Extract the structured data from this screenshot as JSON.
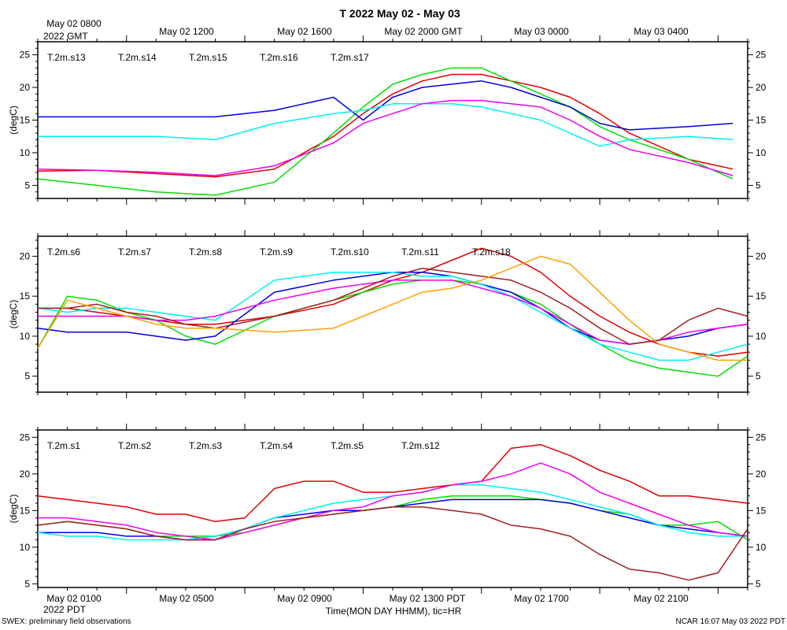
{
  "title": "T 2022 May 02 - May 03",
  "top_axis": {
    "labels": [
      "May 02 0800",
      "May 02 1200",
      "May 02 1600",
      "May 02 2000 GMT",
      "May 03 0000",
      "May 03 0400"
    ],
    "year_label": "2022 GMT"
  },
  "bottom_axis": {
    "labels": [
      "May 02 0100",
      "May 02 0500",
      "May 02 0900",
      "May 02 1300 PDT",
      "May 02 1700",
      "May 02 2100"
    ],
    "year_label": "2022 PDT",
    "xlabel": "Time(MON DAY HHMM), tic=HR"
  },
  "footer": {
    "left": "SWEX: preliminary field observations",
    "right": "NCAR 16:07 May 03 2022 PDT"
  },
  "colors": {
    "red": "#e00000",
    "green": "#00e000",
    "blue": "#0000e0",
    "cyan": "#00f0f0",
    "magenta": "#f000f0",
    "brown": "#a02020",
    "orange": "#ffa000"
  },
  "chart_data": [
    {
      "type": "line",
      "panel": "top",
      "ylabel": "(degC)",
      "xlim": [
        0,
        24
      ],
      "ylim": [
        3,
        27
      ],
      "yticks": [
        5,
        10,
        15,
        20,
        25
      ],
      "x": [
        0,
        2,
        4,
        6,
        8,
        10,
        11,
        12,
        13,
        14,
        15,
        16,
        17,
        18,
        19,
        20,
        22,
        23.5
      ],
      "series": [
        {
          "name": "T.2m.s13",
          "color": "red",
          "values": [
            7.2,
            7.3,
            6.8,
            6.3,
            7.5,
            12.5,
            16.0,
            19.0,
            21.0,
            22.0,
            22.0,
            21.0,
            20.0,
            18.5,
            16.0,
            13.0,
            9.0,
            7.5
          ]
        },
        {
          "name": "T.2m.s14",
          "color": "green",
          "values": [
            6.0,
            5.0,
            4.0,
            3.5,
            5.5,
            13.0,
            17.0,
            20.5,
            22.0,
            23.0,
            23.0,
            21.0,
            19.0,
            17.0,
            14.0,
            12.0,
            9.0,
            6.0
          ]
        },
        {
          "name": "T.2m.s15",
          "color": "blue",
          "values": [
            15.5,
            15.5,
            15.5,
            15.5,
            16.5,
            18.5,
            15.0,
            18.5,
            20.0,
            20.5,
            21.0,
            20.0,
            18.5,
            17.0,
            14.5,
            13.5,
            14.0,
            14.5
          ]
        },
        {
          "name": "T.2m.s16",
          "color": "cyan",
          "values": [
            12.5,
            12.5,
            12.5,
            12.0,
            14.5,
            16.0,
            16.5,
            17.5,
            17.5,
            17.5,
            17.0,
            16.0,
            15.0,
            13.0,
            11.0,
            12.0,
            12.5,
            12.0
          ]
        },
        {
          "name": "T.2m.s17",
          "color": "magenta",
          "values": [
            7.5,
            7.3,
            7.0,
            6.5,
            8.0,
            11.5,
            14.5,
            16.0,
            17.5,
            18.0,
            18.0,
            17.5,
            17.0,
            15.0,
            12.5,
            10.5,
            8.5,
            6.5
          ]
        }
      ]
    },
    {
      "type": "line",
      "panel": "middle",
      "ylabel": "(degC)",
      "xlim": [
        0,
        24
      ],
      "ylim": [
        3,
        22.5
      ],
      "yticks": [
        5,
        10,
        15,
        20
      ],
      "x": [
        0,
        1,
        2,
        3,
        4,
        5,
        6,
        8,
        10,
        11,
        12,
        13,
        14,
        15,
        16,
        17,
        18,
        19,
        20,
        21,
        22,
        23,
        24
      ],
      "series": [
        {
          "name": "T.2m.s6",
          "color": "red",
          "values": [
            13.5,
            13.5,
            13.0,
            12.5,
            12.0,
            11.5,
            11.5,
            12.5,
            14.0,
            15.5,
            17.0,
            18.0,
            19.5,
            21.0,
            20.0,
            18.0,
            15.0,
            12.5,
            10.5,
            9.0,
            8.0,
            7.5,
            8.0
          ]
        },
        {
          "name": "T.2m.s7",
          "color": "green",
          "values": [
            8.5,
            15.0,
            14.5,
            13.0,
            12.0,
            10.0,
            9.0,
            12.5,
            14.5,
            15.5,
            16.5,
            17.0,
            17.0,
            16.5,
            15.5,
            14.0,
            11.5,
            9.0,
            7.0,
            6.0,
            5.5,
            5.0,
            7.5
          ]
        },
        {
          "name": "T.2m.s8",
          "color": "blue",
          "values": [
            11.0,
            10.5,
            10.5,
            10.5,
            10.0,
            9.5,
            10.0,
            15.5,
            17.0,
            17.5,
            18.0,
            18.0,
            17.5,
            16.5,
            15.5,
            13.5,
            11.0,
            9.5,
            9.0,
            9.5,
            10.0,
            11.0,
            11.5
          ]
        },
        {
          "name": "T.2m.s9",
          "color": "cyan",
          "values": [
            13.5,
            13.0,
            13.5,
            13.5,
            13.0,
            12.5,
            12.0,
            17.0,
            18.0,
            18.0,
            18.0,
            17.5,
            17.5,
            16.5,
            15.0,
            13.0,
            11.0,
            9.0,
            8.0,
            7.0,
            7.0,
            8.0,
            9.0
          ]
        },
        {
          "name": "T.2m.s10",
          "color": "magenta",
          "values": [
            12.5,
            12.5,
            12.5,
            12.5,
            12.0,
            12.0,
            12.5,
            14.5,
            16.0,
            16.5,
            17.0,
            17.0,
            17.0,
            16.0,
            15.0,
            13.5,
            11.5,
            9.5,
            9.0,
            9.5,
            10.5,
            11.0,
            11.5
          ]
        },
        {
          "name": "T.2m.s11",
          "color": "brown",
          "values": [
            13.5,
            13.5,
            14.0,
            13.0,
            12.5,
            11.5,
            11.0,
            12.5,
            14.5,
            16.0,
            17.5,
            18.5,
            18.0,
            17.5,
            17.0,
            15.5,
            13.5,
            11.0,
            9.0,
            9.5,
            12.0,
            13.5,
            12.5
          ]
        },
        {
          "name": "T.2m.s18",
          "color": "orange",
          "values": [
            8.5,
            14.5,
            13.5,
            12.5,
            11.5,
            11.0,
            11.0,
            10.5,
            11.0,
            12.5,
            14.0,
            15.5,
            16.0,
            17.0,
            18.5,
            20.0,
            19.0,
            15.5,
            12.0,
            9.0,
            8.0,
            7.0,
            7.0
          ]
        }
      ]
    },
    {
      "type": "line",
      "panel": "bottom",
      "ylabel": "(degC)",
      "xlim": [
        0,
        24
      ],
      "ylim": [
        4.5,
        26
      ],
      "yticks": [
        5,
        10,
        15,
        20,
        25
      ],
      "x": [
        0,
        1,
        2,
        3,
        4,
        5,
        6,
        7,
        8,
        9,
        10,
        11,
        12,
        13,
        14,
        15,
        16,
        17,
        18,
        19,
        20,
        21,
        22,
        23,
        24
      ],
      "series": [
        {
          "name": "T.2m.s1",
          "color": "red",
          "values": [
            17.0,
            16.5,
            16.0,
            15.5,
            14.5,
            14.5,
            13.5,
            14.0,
            18.0,
            19.0,
            19.0,
            17.5,
            17.5,
            18.0,
            18.5,
            19.0,
            23.5,
            24.0,
            22.5,
            20.5,
            19.0,
            17.0,
            17.0,
            16.5,
            16.0
          ]
        },
        {
          "name": "T.2m.s2",
          "color": "green",
          "values": [
            13.0,
            13.5,
            13.0,
            12.5,
            11.5,
            11.5,
            11.5,
            12.0,
            13.0,
            14.0,
            14.5,
            15.0,
            15.5,
            16.5,
            17.0,
            17.0,
            17.0,
            16.5,
            16.0,
            15.0,
            14.5,
            13.0,
            13.0,
            13.5,
            11.0
          ]
        },
        {
          "name": "T.2m.s3",
          "color": "blue",
          "values": [
            12.0,
            12.0,
            12.0,
            11.5,
            11.5,
            11.0,
            11.0,
            12.5,
            14.0,
            14.5,
            15.0,
            15.0,
            15.5,
            16.0,
            16.5,
            16.5,
            16.5,
            16.5,
            16.0,
            15.0,
            14.0,
            13.0,
            12.5,
            12.0,
            11.5
          ]
        },
        {
          "name": "T.2m.s4",
          "color": "cyan",
          "values": [
            12.0,
            11.5,
            11.5,
            11.0,
            11.0,
            11.0,
            11.5,
            12.5,
            14.0,
            15.0,
            16.0,
            16.5,
            17.0,
            17.5,
            18.5,
            18.5,
            18.0,
            17.5,
            16.5,
            15.5,
            14.5,
            13.0,
            12.0,
            11.5,
            11.5
          ]
        },
        {
          "name": "T.2m.s5",
          "color": "magenta",
          "values": [
            14.0,
            14.0,
            13.5,
            13.0,
            12.0,
            11.5,
            11.0,
            12.0,
            13.0,
            14.0,
            15.0,
            15.5,
            17.0,
            17.5,
            18.5,
            19.0,
            20.0,
            21.5,
            20.0,
            17.5,
            16.0,
            14.5,
            13.0,
            12.0,
            11.5
          ]
        },
        {
          "name": "T.2m.s12",
          "color": "brown",
          "values": [
            13.0,
            13.5,
            13.0,
            12.5,
            11.5,
            11.0,
            11.0,
            12.5,
            13.5,
            14.0,
            14.5,
            15.0,
            15.5,
            15.5,
            15.0,
            14.5,
            13.0,
            12.5,
            11.5,
            9.0,
            7.0,
            6.5,
            5.5,
            6.5,
            12.5
          ]
        }
      ]
    }
  ]
}
